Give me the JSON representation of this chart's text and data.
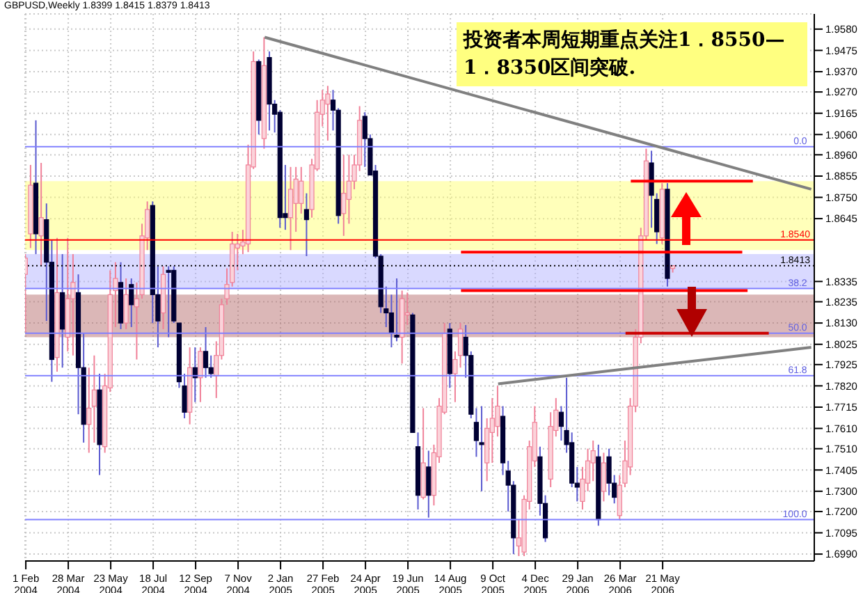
{
  "chart_data": {
    "type": "candlestick",
    "title": "GBPUSD,Weekly  1.8399 1.8415 1.8379 1.8413",
    "annotations": [
      "投资者本周短期重点关注1．8550—\n1．8350区间突破.",
      {
        "text": "0.0",
        "x": "2006-12-03",
        "y": 1.9
      },
      {
        "text": "38.2",
        "x": "2006-12-03",
        "y": 1.83
      },
      {
        "text": "50.0",
        "x": "2006-12-03",
        "y": 1.808
      },
      {
        "text": "61.8",
        "x": "2006-12-03",
        "y": 1.787
      },
      {
        "text": "100.0",
        "x": "2006-12-03",
        "y": 1.716
      }
    ],
    "x": [
      "2004-02-01",
      "2004-02-08",
      "2004-02-15",
      "2004-02-22",
      "2004-02-29",
      "2004-03-07",
      "2004-03-14",
      "2004-03-21",
      "2004-03-28",
      "2004-04-04",
      "2004-04-11",
      "2004-04-18",
      "2004-04-25",
      "2004-05-02",
      "2004-05-09",
      "2004-05-16",
      "2004-05-23",
      "2004-05-30",
      "2004-06-06",
      "2004-06-13",
      "2004-06-20",
      "2004-06-27",
      "2004-07-04",
      "2004-07-11",
      "2004-07-18",
      "2004-07-25",
      "2004-08-01",
      "2004-08-08",
      "2004-08-15",
      "2004-08-22",
      "2004-08-29",
      "2004-09-05",
      "2004-09-12",
      "2004-09-19",
      "2004-09-26",
      "2004-10-03",
      "2004-10-10",
      "2004-10-17",
      "2004-10-24",
      "2004-10-31",
      "2004-11-07",
      "2004-11-14",
      "2004-11-21",
      "2004-11-28",
      "2004-12-05",
      "2004-12-12",
      "2004-12-19",
      "2004-12-26",
      "2005-01-02",
      "2005-01-09",
      "2005-01-16",
      "2005-01-23",
      "2005-01-30",
      "2005-02-06",
      "2005-02-13",
      "2005-02-20",
      "2005-02-27",
      "2005-03-06",
      "2005-03-13",
      "2005-03-20",
      "2005-03-27",
      "2005-04-03",
      "2005-04-10",
      "2005-04-17",
      "2005-04-24",
      "2005-05-01",
      "2005-05-08",
      "2005-05-15",
      "2005-05-22",
      "2005-05-29",
      "2005-06-05",
      "2005-06-12",
      "2005-06-19",
      "2005-06-26",
      "2005-07-03",
      "2005-07-10",
      "2005-07-17",
      "2005-07-24",
      "2005-07-31",
      "2005-08-07",
      "2005-08-14",
      "2005-08-21",
      "2005-08-28",
      "2005-09-04",
      "2005-09-11",
      "2005-09-18",
      "2005-09-25",
      "2005-10-02",
      "2005-10-09",
      "2005-10-16",
      "2005-10-23",
      "2005-10-30",
      "2005-11-06",
      "2005-11-13",
      "2005-11-20",
      "2005-11-27",
      "2005-12-04",
      "2005-12-11",
      "2005-12-18",
      "2005-12-25",
      "2006-01-01",
      "2006-01-08",
      "2006-01-15",
      "2006-01-22",
      "2006-01-29",
      "2006-02-05",
      "2006-02-12",
      "2006-02-19",
      "2006-02-26",
      "2006-03-05",
      "2006-03-12",
      "2006-03-19",
      "2006-03-26",
      "2006-04-02",
      "2006-04-09",
      "2006-04-16",
      "2006-04-23",
      "2006-04-30",
      "2006-05-07",
      "2006-05-14",
      "2006-05-21",
      "2006-05-28",
      "2006-06-04"
    ],
    "ohlc": [
      [
        1.837,
        1.847,
        1.808,
        1.845
      ],
      [
        1.857,
        1.891,
        1.85,
        1.881
      ],
      [
        1.882,
        1.913,
        1.847,
        1.857
      ],
      [
        1.856,
        1.892,
        1.841,
        1.865
      ],
      [
        1.864,
        1.872,
        1.814,
        1.843
      ],
      [
        1.843,
        1.854,
        1.784,
        1.795
      ],
      [
        1.796,
        1.855,
        1.789,
        1.828
      ],
      [
        1.828,
        1.847,
        1.791,
        1.81
      ],
      [
        1.806,
        1.855,
        1.799,
        1.825
      ],
      [
        1.825,
        1.847,
        1.797,
        1.833
      ],
      [
        1.828,
        1.837,
        1.768,
        1.791
      ],
      [
        1.791,
        1.808,
        1.754,
        1.763
      ],
      [
        1.763,
        1.791,
        1.749,
        1.771
      ],
      [
        1.772,
        1.797,
        1.754,
        1.78
      ],
      [
        1.78,
        1.788,
        1.738,
        1.753
      ],
      [
        1.752,
        1.788,
        1.749,
        1.782
      ],
      [
        1.781,
        1.839,
        1.779,
        1.827
      ],
      [
        1.829,
        1.843,
        1.811,
        1.835
      ],
      [
        1.833,
        1.843,
        1.81,
        1.813
      ],
      [
        1.813,
        1.835,
        1.81,
        1.827
      ],
      [
        1.832,
        1.835,
        1.811,
        1.822
      ],
      [
        1.821,
        1.833,
        1.795,
        1.825
      ],
      [
        1.827,
        1.862,
        1.825,
        1.856
      ],
      [
        1.855,
        1.873,
        1.849,
        1.869
      ],
      [
        1.871,
        1.873,
        1.813,
        1.827
      ],
      [
        1.827,
        1.841,
        1.801,
        1.814
      ],
      [
        1.818,
        1.841,
        1.81,
        1.837
      ],
      [
        1.839,
        1.841,
        1.806,
        1.838
      ],
      [
        1.839,
        1.841,
        1.813,
        1.814
      ],
      [
        1.813,
        1.813,
        1.781,
        1.784
      ],
      [
        1.782,
        1.788,
        1.766,
        1.769
      ],
      [
        1.769,
        1.801,
        1.763,
        1.791
      ],
      [
        1.791,
        1.801,
        1.774,
        1.786
      ],
      [
        1.786,
        1.801,
        1.774,
        1.799
      ],
      [
        1.799,
        1.811,
        1.786,
        1.791
      ],
      [
        1.791,
        1.797,
        1.786,
        1.788
      ],
      [
        1.787,
        1.804,
        1.776,
        1.797
      ],
      [
        1.797,
        1.825,
        1.795,
        1.822
      ],
      [
        1.825,
        1.84,
        1.822,
        1.832
      ],
      [
        1.833,
        1.858,
        1.831,
        1.852
      ],
      [
        1.85,
        1.857,
        1.839,
        1.852
      ],
      [
        1.851,
        1.859,
        1.847,
        1.853
      ],
      [
        1.852,
        1.901,
        1.848,
        1.891
      ],
      [
        1.89,
        1.947,
        1.889,
        1.942
      ],
      [
        1.942,
        1.943,
        1.906,
        1.913
      ],
      [
        1.904,
        1.954,
        1.899,
        1.94
      ],
      [
        1.944,
        1.947,
        1.908,
        1.921
      ],
      [
        1.921,
        1.923,
        1.907,
        1.916
      ],
      [
        1.917,
        1.918,
        1.86,
        1.865
      ],
      [
        1.867,
        1.891,
        1.859,
        1.865
      ],
      [
        1.865,
        1.89,
        1.849,
        1.879
      ],
      [
        1.872,
        1.89,
        1.858,
        1.884
      ],
      [
        1.872,
        1.89,
        1.867,
        1.883
      ],
      [
        1.869,
        1.877,
        1.846,
        1.864
      ],
      [
        1.869,
        1.894,
        1.865,
        1.891
      ],
      [
        1.889,
        1.923,
        1.888,
        1.917
      ],
      [
        1.916,
        1.928,
        1.91,
        1.923
      ],
      [
        1.921,
        1.93,
        1.903,
        1.926
      ],
      [
        1.923,
        1.928,
        1.908,
        1.918
      ],
      [
        1.918,
        1.919,
        1.862,
        1.866
      ],
      [
        1.867,
        1.896,
        1.856,
        1.877
      ],
      [
        1.874,
        1.896,
        1.862,
        1.883
      ],
      [
        1.883,
        1.896,
        1.879,
        1.891
      ],
      [
        1.891,
        1.92,
        1.888,
        1.913
      ],
      [
        1.915,
        1.917,
        1.89,
        1.904
      ],
      [
        1.904,
        1.906,
        1.886,
        1.886
      ],
      [
        1.888,
        1.891,
        1.845,
        1.846
      ],
      [
        1.846,
        1.847,
        1.818,
        1.821
      ],
      [
        1.82,
        1.831,
        1.811,
        1.818
      ],
      [
        1.818,
        1.827,
        1.801,
        1.808
      ],
      [
        1.807,
        1.835,
        1.804,
        1.806
      ],
      [
        1.806,
        1.829,
        1.793,
        1.825
      ],
      [
        1.817,
        1.828,
        1.812,
        1.818
      ],
      [
        1.817,
        1.818,
        1.759,
        1.759
      ],
      [
        1.752,
        1.759,
        1.721,
        1.728
      ],
      [
        1.727,
        1.771,
        1.726,
        1.744
      ],
      [
        1.742,
        1.75,
        1.717,
        1.728
      ],
      [
        1.728,
        1.753,
        1.723,
        1.749
      ],
      [
        1.747,
        1.776,
        1.744,
        1.772
      ],
      [
        1.769,
        1.813,
        1.768,
        1.808
      ],
      [
        1.81,
        1.813,
        1.781,
        1.788
      ],
      [
        1.788,
        1.799,
        1.774,
        1.795
      ],
      [
        1.797,
        1.813,
        1.791,
        1.81
      ],
      [
        1.806,
        1.812,
        1.786,
        1.797
      ],
      [
        1.797,
        1.799,
        1.766,
        1.768
      ],
      [
        1.764,
        1.771,
        1.747,
        1.755
      ],
      [
        1.754,
        1.772,
        1.73,
        1.753
      ],
      [
        1.744,
        1.766,
        1.735,
        1.761
      ],
      [
        1.759,
        1.776,
        1.744,
        1.766
      ],
      [
        1.762,
        1.782,
        1.757,
        1.772
      ],
      [
        1.767,
        1.772,
        1.738,
        1.744
      ],
      [
        1.74,
        1.745,
        1.72,
        1.733
      ],
      [
        1.733,
        1.735,
        1.699,
        1.707
      ],
      [
        1.703,
        1.716,
        1.698,
        1.707
      ],
      [
        1.7,
        1.728,
        1.698,
        1.726
      ],
      [
        1.725,
        1.755,
        1.721,
        1.752
      ],
      [
        1.745,
        1.772,
        1.742,
        1.764
      ],
      [
        1.747,
        1.752,
        1.718,
        1.724
      ],
      [
        1.724,
        1.728,
        1.705,
        1.707
      ],
      [
        1.736,
        1.769,
        1.732,
        1.762
      ],
      [
        1.76,
        1.776,
        1.757,
        1.77
      ],
      [
        1.769,
        1.772,
        1.755,
        1.762
      ],
      [
        1.76,
        1.786,
        1.749,
        1.753
      ],
      [
        1.754,
        1.759,
        1.732,
        1.734
      ],
      [
        1.734,
        1.742,
        1.725,
        1.732
      ],
      [
        1.725,
        1.742,
        1.721,
        1.736
      ],
      [
        1.734,
        1.751,
        1.73,
        1.745
      ],
      [
        1.744,
        1.755,
        1.735,
        1.75
      ],
      [
        1.747,
        1.753,
        1.713,
        1.716
      ],
      [
        1.73,
        1.749,
        1.725,
        1.744
      ],
      [
        1.747,
        1.751,
        1.728,
        1.734
      ],
      [
        1.734,
        1.738,
        1.724,
        1.727
      ],
      [
        1.718,
        1.738,
        1.716,
        1.733
      ],
      [
        1.734,
        1.755,
        1.732,
        1.745
      ],
      [
        1.742,
        1.776,
        1.738,
        1.772
      ],
      [
        1.772,
        1.81,
        1.769,
        1.806
      ],
      [
        1.806,
        1.86,
        1.803,
        1.856
      ],
      [
        1.856,
        1.899,
        1.854,
        1.893
      ],
      [
        1.892,
        1.898,
        1.86,
        1.876
      ],
      [
        1.874,
        1.877,
        1.852,
        1.858
      ],
      [
        1.855,
        1.882,
        1.852,
        1.879
      ],
      [
        1.879,
        1.882,
        1.831,
        1.835
      ],
      [
        1.8399,
        1.8415,
        1.8379,
        1.8413
      ]
    ],
    "series": [
      {
        "type": "line",
        "color": "#808080",
        "x": [
          "2004-12-12",
          "2006-12-03"
        ],
        "values": [
          1.954,
          1.879
        ]
      },
      {
        "type": "line",
        "color": "#808080",
        "x": [
          "2005-10-16",
          "2006-12-03"
        ],
        "values": [
          1.783,
          1.801
        ]
      },
      {
        "type": "line",
        "color": "#ff0000",
        "x": [
          "2006-04-09",
          "2006-09-17"
        ],
        "values": [
          1.883,
          1.883
        ]
      },
      {
        "type": "line",
        "color": "#ff0000",
        "x": [
          "2005-08-28",
          "2006-09-03"
        ],
        "values": [
          1.848,
          1.848
        ]
      },
      {
        "type": "line",
        "color": "#ff0000",
        "x": [
          "2005-08-28",
          "2006-09-10"
        ],
        "values": [
          1.829,
          1.829
        ]
      },
      {
        "type": "line",
        "color": "#cc0000",
        "x": [
          "2006-04-02",
          "2006-10-08"
        ],
        "values": [
          1.808,
          1.808
        ]
      }
    ],
    "ref_lines": [
      {
        "axis": "y",
        "value": 1.854,
        "label": "1.8540",
        "color": "#ff0000"
      },
      {
        "axis": "y",
        "value": 1.8413,
        "label": "1.8413",
        "color": "#000000",
        "line_style": "dotted"
      },
      {
        "axis": "y",
        "value": 1.9,
        "color": "#8080ff"
      },
      {
        "axis": "y",
        "value": 1.83,
        "color": "#8080ff"
      },
      {
        "axis": "y",
        "value": 1.808,
        "color": "#8080ff"
      },
      {
        "axis": "y",
        "value": 1.787,
        "color": "#8080ff"
      },
      {
        "axis": "y",
        "value": 1.716,
        "color": "#8080ff"
      }
    ],
    "bands": [
      {
        "axis": "y",
        "from": 1.849,
        "to": 1.883,
        "color": "#ffff66"
      },
      {
        "axis": "y",
        "from": 1.83,
        "to": 1.847,
        "color": "#aaaaff"
      },
      {
        "axis": "y",
        "from": 1.806,
        "to": 1.827,
        "color": "#b06060"
      }
    ],
    "xlim": [
      "2004-01-31",
      "2006-12-07"
    ],
    "xticks": [
      {
        "value": "2004-02-01",
        "label": "1 Feb 2004"
      },
      {
        "value": "2004-03-28",
        "label": "28 Mar 2004"
      },
      {
        "value": "2004-05-23",
        "label": "23 May 2004"
      },
      {
        "value": "2004-07-18",
        "label": "18 Jul 2004"
      },
      {
        "value": "2004-09-12",
        "label": "12 Sep 2004"
      },
      {
        "value": "2004-11-07",
        "label": "7 Nov 2004"
      },
      {
        "value": "2005-01-02",
        "label": "2 Jan 2005"
      },
      {
        "value": "2005-02-27",
        "label": "27 Feb 2005"
      },
      {
        "value": "2005-04-24",
        "label": "24 Apr 2005"
      },
      {
        "value": "2005-06-19",
        "label": "19 Jun 2005"
      },
      {
        "value": "2005-08-14",
        "label": "14 Aug 2005"
      },
      {
        "value": "2005-10-09",
        "label": "9 Oct 2005"
      },
      {
        "value": "2005-12-04",
        "label": "4 Dec 2005"
      },
      {
        "value": "2006-01-29",
        "label": "29 Jan 2006"
      },
      {
        "value": "2006-03-26",
        "label": "26 Mar 2006"
      },
      {
        "value": "2006-05-21",
        "label": "21 May 2006"
      }
    ],
    "ylim": [
      1.6956,
      1.9655
    ],
    "yticks": [
      {
        "value": 1.958,
        "label": "1.9580"
      },
      1.9475,
      {
        "value": 1.937,
        "label": "1.9370"
      },
      {
        "value": 1.927,
        "label": "1.9270"
      },
      1.9165,
      {
        "value": 1.906,
        "label": "1.9060"
      },
      {
        "value": 1.896,
        "label": "1.8960"
      },
      1.8855,
      {
        "value": 1.875,
        "label": "1.8750"
      },
      1.8645,
      1.8335,
      1.8235,
      {
        "value": 1.813,
        "label": "1.8130"
      },
      1.8025,
      1.7925,
      {
        "value": 1.782,
        "label": "1.7820"
      },
      1.7715,
      {
        "value": 1.761,
        "label": "1.7610"
      },
      {
        "value": 1.751,
        "label": "1.7510"
      },
      1.7405,
      {
        "value": 1.73,
        "label": "1.7300"
      },
      {
        "value": 1.72,
        "label": "1.7200"
      },
      1.7095,
      {
        "value": 1.699,
        "label": "1.6990"
      }
    ],
    "grid": true
  }
}
